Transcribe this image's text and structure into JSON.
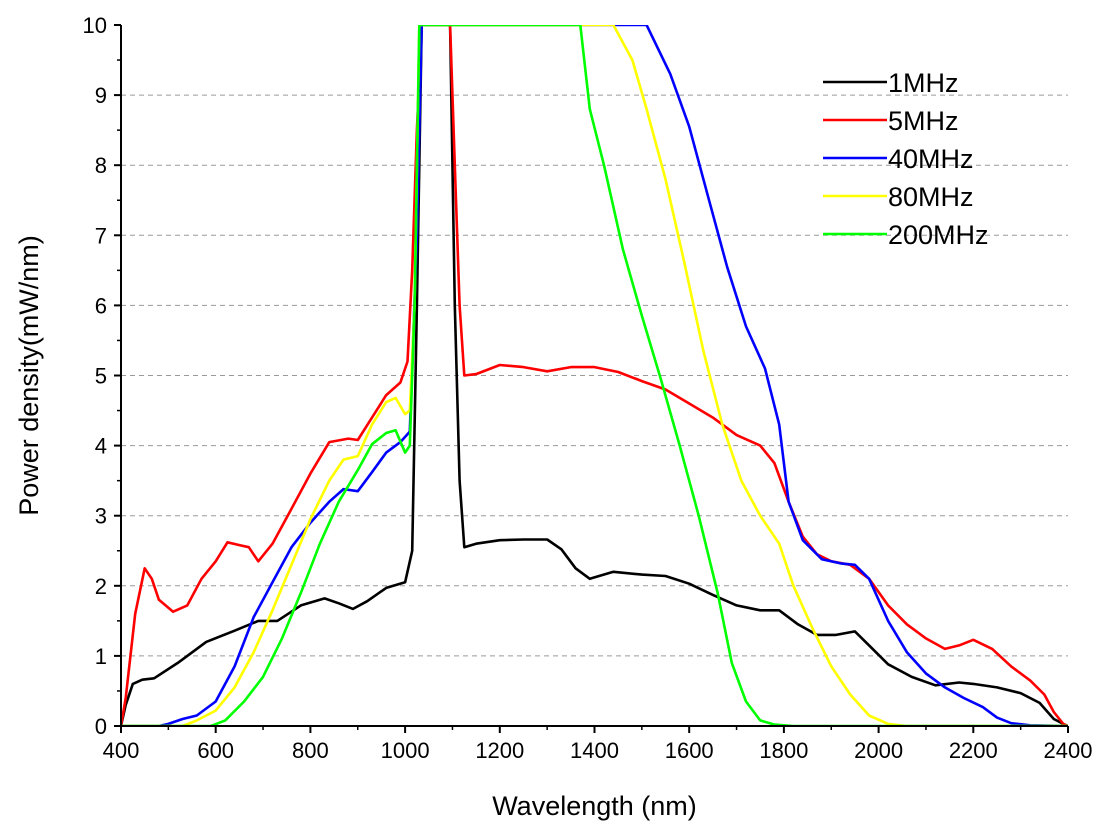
{
  "chart_data": {
    "type": "line",
    "title": "",
    "xlabel": "Wavelength (nm)",
    "ylabel": "Power density(mW/nm)",
    "xlim": [
      400,
      2400
    ],
    "ylim": [
      0,
      10
    ],
    "xticks": [
      400,
      600,
      800,
      1000,
      1200,
      1400,
      1600,
      1800,
      2000,
      2200,
      2400
    ],
    "yticks": [
      0,
      1,
      2,
      3,
      4,
      5,
      6,
      7,
      8,
      9,
      10
    ],
    "xtick_labels": [
      "400",
      "600",
      "800",
      "1000",
      "1200",
      "1400",
      "1600",
      "1800",
      "2000",
      "2200",
      "2400"
    ],
    "ytick_labels": [
      "0",
      "1",
      "2",
      "3",
      "4",
      "5",
      "6",
      "7",
      "8",
      "9",
      "10"
    ],
    "grid": "horizontal dashed",
    "legend_position": "top-right",
    "series": [
      {
        "name": "1MHz",
        "color": "#000000",
        "points": [
          [
            400,
            0
          ],
          [
            410,
            0.3
          ],
          [
            425,
            0.6
          ],
          [
            445,
            0.66
          ],
          [
            470,
            0.68
          ],
          [
            520,
            0.9
          ],
          [
            580,
            1.2
          ],
          [
            640,
            1.36
          ],
          [
            690,
            1.5
          ],
          [
            730,
            1.5
          ],
          [
            780,
            1.72
          ],
          [
            830,
            1.82
          ],
          [
            860,
            1.75
          ],
          [
            890,
            1.67
          ],
          [
            920,
            1.78
          ],
          [
            960,
            1.97
          ],
          [
            1000,
            2.05
          ],
          [
            1015,
            2.5
          ],
          [
            1025,
            6
          ],
          [
            1035,
            10
          ],
          [
            1095,
            10
          ],
          [
            1105,
            6
          ],
          [
            1115,
            3.5
          ],
          [
            1125,
            2.55
          ],
          [
            1150,
            2.6
          ],
          [
            1200,
            2.65
          ],
          [
            1250,
            2.66
          ],
          [
            1300,
            2.66
          ],
          [
            1330,
            2.52
          ],
          [
            1360,
            2.25
          ],
          [
            1390,
            2.1
          ],
          [
            1440,
            2.2
          ],
          [
            1500,
            2.16
          ],
          [
            1550,
            2.14
          ],
          [
            1600,
            2.03
          ],
          [
            1650,
            1.87
          ],
          [
            1700,
            1.72
          ],
          [
            1750,
            1.65
          ],
          [
            1790,
            1.65
          ],
          [
            1830,
            1.45
          ],
          [
            1870,
            1.3
          ],
          [
            1910,
            1.3
          ],
          [
            1950,
            1.35
          ],
          [
            1980,
            1.15
          ],
          [
            2020,
            0.88
          ],
          [
            2070,
            0.7
          ],
          [
            2120,
            0.58
          ],
          [
            2170,
            0.62
          ],
          [
            2200,
            0.6
          ],
          [
            2250,
            0.55
          ],
          [
            2300,
            0.47
          ],
          [
            2340,
            0.33
          ],
          [
            2370,
            0.1
          ],
          [
            2390,
            0.03
          ],
          [
            2400,
            0
          ]
        ]
      },
      {
        "name": "5MHz",
        "color": "#ff0000",
        "points": [
          [
            400,
            0
          ],
          [
            410,
            0.4
          ],
          [
            430,
            1.6
          ],
          [
            450,
            2.25
          ],
          [
            465,
            2.1
          ],
          [
            480,
            1.8
          ],
          [
            510,
            1.63
          ],
          [
            540,
            1.72
          ],
          [
            570,
            2.1
          ],
          [
            600,
            2.35
          ],
          [
            625,
            2.62
          ],
          [
            650,
            2.58
          ],
          [
            670,
            2.55
          ],
          [
            690,
            2.35
          ],
          [
            720,
            2.6
          ],
          [
            760,
            3.1
          ],
          [
            800,
            3.6
          ],
          [
            840,
            4.05
          ],
          [
            880,
            4.1
          ],
          [
            900,
            4.08
          ],
          [
            930,
            4.4
          ],
          [
            960,
            4.72
          ],
          [
            990,
            4.9
          ],
          [
            1005,
            5.2
          ],
          [
            1015,
            6.5
          ],
          [
            1025,
            8.5
          ],
          [
            1035,
            10
          ],
          [
            1095,
            10
          ],
          [
            1105,
            8
          ],
          [
            1115,
            6
          ],
          [
            1125,
            5.0
          ],
          [
            1150,
            5.02
          ],
          [
            1200,
            5.15
          ],
          [
            1250,
            5.12
          ],
          [
            1300,
            5.06
          ],
          [
            1350,
            5.12
          ],
          [
            1400,
            5.12
          ],
          [
            1450,
            5.05
          ],
          [
            1500,
            4.92
          ],
          [
            1550,
            4.8
          ],
          [
            1600,
            4.6
          ],
          [
            1650,
            4.4
          ],
          [
            1700,
            4.15
          ],
          [
            1750,
            4.0
          ],
          [
            1780,
            3.75
          ],
          [
            1810,
            3.2
          ],
          [
            1840,
            2.7
          ],
          [
            1870,
            2.45
          ],
          [
            1900,
            2.35
          ],
          [
            1940,
            2.3
          ],
          [
            1980,
            2.1
          ],
          [
            2020,
            1.72
          ],
          [
            2060,
            1.45
          ],
          [
            2100,
            1.25
          ],
          [
            2140,
            1.1
          ],
          [
            2170,
            1.15
          ],
          [
            2200,
            1.23
          ],
          [
            2240,
            1.1
          ],
          [
            2280,
            0.85
          ],
          [
            2320,
            0.65
          ],
          [
            2350,
            0.45
          ],
          [
            2370,
            0.2
          ],
          [
            2390,
            0.03
          ],
          [
            2400,
            0
          ]
        ]
      },
      {
        "name": "40MHz",
        "color": "#0000ff",
        "points": [
          [
            400,
            0
          ],
          [
            480,
            0
          ],
          [
            500,
            0.03
          ],
          [
            530,
            0.1
          ],
          [
            560,
            0.15
          ],
          [
            600,
            0.35
          ],
          [
            640,
            0.85
          ],
          [
            680,
            1.55
          ],
          [
            720,
            2.05
          ],
          [
            760,
            2.55
          ],
          [
            800,
            2.9
          ],
          [
            840,
            3.2
          ],
          [
            870,
            3.38
          ],
          [
            900,
            3.35
          ],
          [
            930,
            3.62
          ],
          [
            960,
            3.9
          ],
          [
            990,
            4.05
          ],
          [
            1010,
            4.2
          ],
          [
            1025,
            7
          ],
          [
            1035,
            10
          ],
          [
            1095,
            10
          ],
          [
            1510,
            10
          ],
          [
            1560,
            9.3
          ],
          [
            1600,
            8.55
          ],
          [
            1640,
            7.55
          ],
          [
            1680,
            6.55
          ],
          [
            1720,
            5.7
          ],
          [
            1760,
            5.1
          ],
          [
            1790,
            4.3
          ],
          [
            1810,
            3.2
          ],
          [
            1840,
            2.65
          ],
          [
            1880,
            2.38
          ],
          [
            1920,
            2.32
          ],
          [
            1950,
            2.3
          ],
          [
            1980,
            2.1
          ],
          [
            2020,
            1.5
          ],
          [
            2060,
            1.05
          ],
          [
            2100,
            0.75
          ],
          [
            2140,
            0.55
          ],
          [
            2180,
            0.4
          ],
          [
            2220,
            0.27
          ],
          [
            2250,
            0.12
          ],
          [
            2280,
            0.04
          ],
          [
            2320,
            0.01
          ],
          [
            2400,
            0
          ]
        ]
      },
      {
        "name": "80MHz",
        "color": "#ffff00",
        "points": [
          [
            400,
            0
          ],
          [
            530,
            0
          ],
          [
            560,
            0.08
          ],
          [
            600,
            0.22
          ],
          [
            640,
            0.55
          ],
          [
            680,
            1.05
          ],
          [
            720,
            1.65
          ],
          [
            760,
            2.3
          ],
          [
            800,
            2.95
          ],
          [
            840,
            3.5
          ],
          [
            870,
            3.8
          ],
          [
            900,
            3.85
          ],
          [
            930,
            4.3
          ],
          [
            960,
            4.62
          ],
          [
            980,
            4.68
          ],
          [
            1000,
            4.45
          ],
          [
            1010,
            4.5
          ],
          [
            1020,
            6
          ],
          [
            1030,
            10
          ],
          [
            1095,
            10
          ],
          [
            1440,
            10
          ],
          [
            1480,
            9.5
          ],
          [
            1510,
            8.8
          ],
          [
            1550,
            7.8
          ],
          [
            1590,
            6.6
          ],
          [
            1630,
            5.35
          ],
          [
            1670,
            4.3
          ],
          [
            1710,
            3.5
          ],
          [
            1750,
            3.0
          ],
          [
            1790,
            2.6
          ],
          [
            1820,
            2.0
          ],
          [
            1860,
            1.4
          ],
          [
            1900,
            0.85
          ],
          [
            1940,
            0.45
          ],
          [
            1980,
            0.15
          ],
          [
            2020,
            0.03
          ],
          [
            2060,
            0
          ],
          [
            2400,
            0
          ]
        ]
      },
      {
        "name": "200MHz",
        "color": "#00ff00",
        "points": [
          [
            400,
            0
          ],
          [
            590,
            0
          ],
          [
            620,
            0.08
          ],
          [
            660,
            0.35
          ],
          [
            700,
            0.7
          ],
          [
            740,
            1.25
          ],
          [
            780,
            1.9
          ],
          [
            820,
            2.6
          ],
          [
            860,
            3.2
          ],
          [
            900,
            3.65
          ],
          [
            930,
            4.02
          ],
          [
            960,
            4.18
          ],
          [
            980,
            4.22
          ],
          [
            1000,
            3.9
          ],
          [
            1010,
            4.0
          ],
          [
            1020,
            6
          ],
          [
            1030,
            10
          ],
          [
            1095,
            10
          ],
          [
            1370,
            10
          ],
          [
            1390,
            8.8
          ],
          [
            1420,
            8.0
          ],
          [
            1460,
            6.8
          ],
          [
            1500,
            5.85
          ],
          [
            1540,
            4.95
          ],
          [
            1580,
            4.0
          ],
          [
            1620,
            3.0
          ],
          [
            1660,
            1.9
          ],
          [
            1690,
            0.9
          ],
          [
            1720,
            0.35
          ],
          [
            1750,
            0.08
          ],
          [
            1780,
            0.02
          ],
          [
            1820,
            0
          ],
          [
            2400,
            0
          ]
        ]
      }
    ]
  }
}
